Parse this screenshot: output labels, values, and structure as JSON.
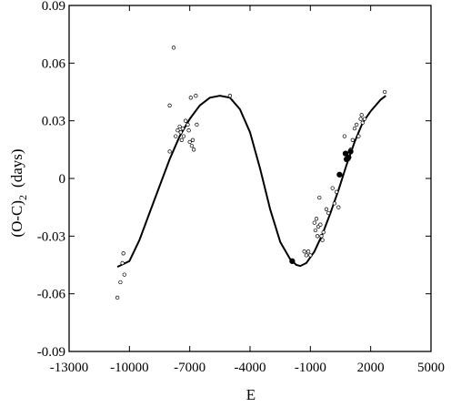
{
  "chart_data": {
    "type": "scatter",
    "xlabel": "E",
    "ylabel_main": "(O-C)",
    "ylabel_sub": "2",
    "ylabel_unit": "(days)",
    "xlim": [
      -13000,
      5000
    ],
    "ylim": [
      -0.09,
      0.09
    ],
    "x_ticks": [
      -13000,
      -10000,
      -7000,
      -4000,
      -1000,
      2000,
      5000
    ],
    "x_tick_labels": [
      "-13000",
      "-10000",
      "-7000",
      "-4000",
      "-1000",
      "2000",
      "5000"
    ],
    "y_ticks": [
      -0.09,
      -0.06,
      -0.03,
      0,
      0.03,
      0.06,
      0.09
    ],
    "y_tick_labels": [
      "-0.09",
      "-0.06",
      "-0.03",
      "0",
      "0.03",
      "0.06",
      "0.09"
    ],
    "grid": false,
    "legend": "none",
    "series": [
      {
        "marker": "open-circle",
        "points": [
          [
            -10600,
            -0.062
          ],
          [
            -10450,
            -0.054
          ],
          [
            -10350,
            -0.044
          ],
          [
            -10300,
            -0.039
          ],
          [
            -10250,
            -0.05
          ],
          [
            -8000,
            0.038
          ],
          [
            -8000,
            0.014
          ],
          [
            -7800,
            0.068
          ],
          [
            -7700,
            0.022
          ],
          [
            -7600,
            0.025
          ],
          [
            -7500,
            0.027
          ],
          [
            -7450,
            0.024
          ],
          [
            -7400,
            0.02
          ],
          [
            -7350,
            0.026
          ],
          [
            -7300,
            0.022
          ],
          [
            -7200,
            0.03
          ],
          [
            -7100,
            0.028
          ],
          [
            -7050,
            0.025
          ],
          [
            -7000,
            0.019
          ],
          [
            -6950,
            0.042
          ],
          [
            -6900,
            0.017
          ],
          [
            -6850,
            0.02
          ],
          [
            -6800,
            0.015
          ],
          [
            -6700,
            0.043
          ],
          [
            -6650,
            0.028
          ],
          [
            -5000,
            0.043
          ],
          [
            -1900,
            -0.043
          ],
          [
            -1300,
            -0.038
          ],
          [
            -1200,
            -0.04
          ],
          [
            -1100,
            -0.038
          ],
          [
            -1000,
            -0.04
          ],
          [
            -800,
            -0.023
          ],
          [
            -750,
            -0.027
          ],
          [
            -700,
            -0.021
          ],
          [
            -650,
            -0.03
          ],
          [
            -600,
            -0.025
          ],
          [
            -550,
            -0.01
          ],
          [
            -500,
            -0.024
          ],
          [
            -450,
            -0.03
          ],
          [
            -400,
            -0.032
          ],
          [
            -350,
            -0.028
          ],
          [
            -200,
            -0.016
          ],
          [
            -100,
            -0.018
          ],
          [
            100,
            -0.005
          ],
          [
            200,
            -0.013
          ],
          [
            300,
            -0.007
          ],
          [
            400,
            -0.015
          ],
          [
            500,
            0.002
          ],
          [
            700,
            0.022
          ],
          [
            900,
            0.01
          ],
          [
            1000,
            0.015
          ],
          [
            1100,
            0.02
          ],
          [
            1200,
            0.026
          ],
          [
            1300,
            0.028
          ],
          [
            1400,
            0.022
          ],
          [
            1500,
            0.031
          ],
          [
            1550,
            0.033
          ],
          [
            1600,
            0.029
          ],
          [
            1700,
            0.031
          ],
          [
            2700,
            0.045
          ]
        ]
      },
      {
        "marker": "filled-circle",
        "points": [
          [
            -1900,
            -0.043
          ],
          [
            450,
            0.002
          ],
          [
            750,
            0.013
          ],
          [
            800,
            0.01
          ],
          [
            900,
            0.011
          ],
          [
            1000,
            0.014
          ]
        ]
      }
    ],
    "fit_curve": [
      [
        -10600,
        -0.046
      ],
      [
        -10000,
        -0.043
      ],
      [
        -9500,
        -0.032
      ],
      [
        -9000,
        -0.018
      ],
      [
        -8500,
        -0.004
      ],
      [
        -8000,
        0.01
      ],
      [
        -7500,
        0.022
      ],
      [
        -7000,
        0.031
      ],
      [
        -6500,
        0.038
      ],
      [
        -6000,
        0.042
      ],
      [
        -5500,
        0.043
      ],
      [
        -5000,
        0.042
      ],
      [
        -4500,
        0.036
      ],
      [
        -4000,
        0.024
      ],
      [
        -3500,
        0.005
      ],
      [
        -3000,
        -0.016
      ],
      [
        -2500,
        -0.033
      ],
      [
        -2000,
        -0.042
      ],
      [
        -1700,
        -0.045
      ],
      [
        -1500,
        -0.0455
      ],
      [
        -1200,
        -0.044
      ],
      [
        -800,
        -0.038
      ],
      [
        -400,
        -0.029
      ],
      [
        0,
        -0.018
      ],
      [
        400,
        -0.006
      ],
      [
        800,
        0.007
      ],
      [
        1200,
        0.019
      ],
      [
        1600,
        0.029
      ],
      [
        2000,
        0.035
      ],
      [
        2500,
        0.041
      ],
      [
        2750,
        0.043
      ]
    ]
  }
}
